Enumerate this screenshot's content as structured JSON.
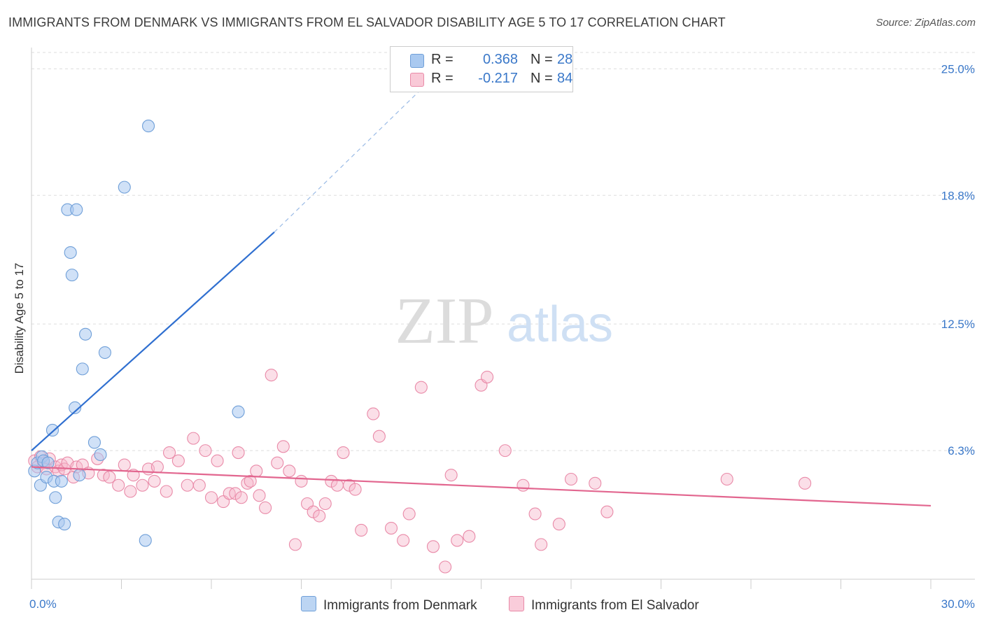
{
  "title": "IMMIGRANTS FROM DENMARK VS IMMIGRANTS FROM EL SALVADOR DISABILITY AGE 5 TO 17 CORRELATION CHART",
  "source": "Source: ZipAtlas.com",
  "watermark": {
    "zip": "ZIP",
    "atlas": "atlas"
  },
  "legend_top": {
    "rows": [
      {
        "r_label": "R =",
        "r_value": "0.368",
        "n_label": "N =",
        "n_value": "28"
      },
      {
        "r_label": "R =",
        "r_value": "-0.217",
        "n_label": "N =",
        "n_value": "84"
      }
    ]
  },
  "legend_bottom": [
    {
      "label": "Immigrants from Denmark"
    },
    {
      "label": "Immigrants from El Salvador"
    }
  ],
  "colors": {
    "blue_fill": "#a9c9f0",
    "blue_stroke": "#6f9fd8",
    "blue_line": "#2f6fd0",
    "pink_fill": "#f6b8cb",
    "pink_stroke": "#e98aa8",
    "pink_line": "#e2668f",
    "tick_label": "#3a78c9",
    "grid": "#dddddd"
  },
  "chart_data": {
    "type": "scatter",
    "title": "IMMIGRANTS FROM DENMARK VS IMMIGRANTS FROM EL SALVADOR DISABILITY AGE 5 TO 17 CORRELATION CHART",
    "xlabel": "",
    "ylabel": "Disability Age 5 to 17",
    "xlim": [
      0,
      30
    ],
    "ylim": [
      0,
      25.8
    ],
    "x_tick_labels": [
      "0.0%",
      "30.0%"
    ],
    "y_ticks": [
      6.3,
      12.5,
      18.8,
      25.0
    ],
    "y_tick_labels": [
      "6.3%",
      "12.5%",
      "18.8%",
      "25.0%"
    ],
    "grid": true,
    "legend_position": "bottom",
    "series": [
      {
        "name": "Immigrants from Denmark",
        "color": "blue",
        "x": [
          0.1,
          0.2,
          0.3,
          0.35,
          0.4,
          0.5,
          0.55,
          0.7,
          0.75,
          0.8,
          0.9,
          1.0,
          1.1,
          1.2,
          1.3,
          1.35,
          1.45,
          1.5,
          1.6,
          1.7,
          1.8,
          2.1,
          2.3,
          2.45,
          3.1,
          3.8,
          3.9,
          6.9
        ],
        "y": [
          5.3,
          5.7,
          4.6,
          6.0,
          5.8,
          5.0,
          5.7,
          7.3,
          4.8,
          4.0,
          2.8,
          4.8,
          2.7,
          18.1,
          16.0,
          14.9,
          8.4,
          18.1,
          5.1,
          10.3,
          12.0,
          6.7,
          6.1,
          11.1,
          19.2,
          1.9,
          22.2,
          8.2
        ],
        "trendline": {
          "x": [
            0,
            8.1
          ],
          "y": [
            6.3,
            17.0
          ],
          "dashed_to": {
            "x": 13.0,
            "y": 24.0
          }
        }
      },
      {
        "name": "Immigrants from El Salvador",
        "color": "pink",
        "x": [
          0.1,
          0.2,
          0.3,
          0.4,
          0.5,
          0.6,
          0.8,
          0.9,
          1.0,
          1.1,
          1.2,
          1.4,
          1.5,
          1.7,
          1.9,
          2.2,
          2.4,
          2.6,
          2.9,
          3.1,
          3.3,
          3.4,
          3.7,
          3.9,
          4.1,
          4.2,
          4.5,
          4.6,
          4.9,
          5.2,
          5.4,
          5.6,
          5.8,
          6.0,
          6.2,
          6.4,
          6.6,
          6.8,
          6.9,
          7.0,
          7.2,
          7.3,
          7.5,
          7.6,
          7.8,
          8.0,
          8.2,
          8.4,
          8.6,
          8.8,
          9.0,
          9.2,
          9.4,
          9.6,
          9.8,
          10.0,
          10.2,
          10.4,
          10.6,
          10.8,
          11.0,
          11.4,
          11.6,
          12.0,
          12.4,
          12.6,
          13.0,
          13.4,
          13.8,
          14.0,
          14.2,
          14.6,
          15.0,
          15.2,
          15.8,
          16.4,
          16.8,
          17.0,
          17.6,
          18.0,
          18.8,
          19.2,
          23.2,
          25.8
        ],
        "y": [
          5.8,
          5.5,
          6.0,
          5.7,
          5.4,
          5.9,
          5.5,
          5.3,
          5.6,
          5.4,
          5.7,
          5.0,
          5.5,
          5.6,
          5.2,
          5.9,
          5.1,
          5.0,
          4.6,
          5.6,
          4.3,
          5.1,
          4.6,
          5.4,
          4.8,
          5.5,
          4.3,
          6.2,
          5.8,
          4.6,
          6.9,
          4.6,
          6.3,
          4.0,
          5.8,
          3.8,
          4.2,
          4.2,
          6.2,
          4.0,
          4.7,
          4.8,
          5.3,
          4.1,
          3.5,
          10.0,
          5.7,
          6.5,
          5.3,
          1.7,
          4.8,
          3.7,
          3.3,
          3.1,
          3.7,
          4.8,
          4.6,
          6.2,
          4.6,
          4.4,
          2.4,
          8.1,
          7.0,
          2.5,
          1.9,
          3.2,
          9.4,
          1.6,
          0.6,
          5.1,
          1.9,
          2.1,
          9.5,
          9.9,
          6.3,
          4.6,
          3.2,
          1.7,
          2.7,
          4.9,
          4.7,
          3.3,
          4.9,
          4.7
        ],
        "trendline": {
          "x": [
            0,
            30
          ],
          "y": [
            5.5,
            3.6
          ]
        }
      }
    ]
  }
}
